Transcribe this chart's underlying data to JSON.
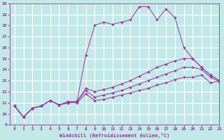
{
  "xlabel": "Windchill (Refroidissement éolien,°C)",
  "bg_color": "#c2e8e8",
  "line_color": "#993399",
  "grid_color": "#ffffff",
  "ylim": [
    9,
    20
  ],
  "xlim": [
    -0.5,
    23
  ],
  "yticks": [
    9,
    10,
    11,
    12,
    13,
    14,
    15,
    16,
    17,
    18,
    19,
    20
  ],
  "xticks": [
    0,
    1,
    2,
    3,
    4,
    5,
    6,
    7,
    8,
    9,
    10,
    11,
    12,
    13,
    14,
    15,
    16,
    17,
    18,
    19,
    20,
    21,
    22,
    23
  ],
  "lines": [
    {
      "x": [
        0,
        1,
        2,
        3,
        4,
        5,
        6,
        7,
        8,
        9,
        10,
        11,
        12,
        13,
        14,
        15,
        16,
        17,
        18,
        19,
        20,
        21,
        22,
        23
      ],
      "y": [
        10.7,
        9.7,
        10.5,
        10.7,
        11.2,
        10.8,
        11.1,
        11.1,
        15.3,
        18.0,
        18.3,
        18.1,
        18.3,
        18.5,
        19.7,
        19.7,
        18.5,
        19.5,
        18.7,
        16.0,
        15.0,
        14.2,
        13.5,
        13.0
      ]
    },
    {
      "x": [
        0,
        1,
        2,
        3,
        4,
        5,
        6,
        7,
        8,
        9,
        10,
        11,
        12,
        13,
        14,
        15,
        16,
        17,
        18,
        19,
        20,
        21,
        22,
        23
      ],
      "y": [
        10.7,
        9.7,
        10.5,
        10.7,
        11.2,
        10.8,
        11.0,
        11.1,
        12.3,
        12.0,
        12.2,
        12.4,
        12.7,
        13.0,
        13.4,
        13.8,
        14.2,
        14.5,
        14.8,
        15.0,
        15.0,
        14.2,
        13.5,
        13.0
      ]
    },
    {
      "x": [
        0,
        1,
        2,
        3,
        4,
        5,
        6,
        7,
        8,
        9,
        10,
        11,
        12,
        13,
        14,
        15,
        16,
        17,
        18,
        19,
        20,
        21,
        22,
        23
      ],
      "y": [
        10.7,
        9.7,
        10.5,
        10.7,
        11.2,
        10.8,
        11.0,
        11.1,
        12.1,
        11.5,
        11.7,
        11.9,
        12.1,
        12.4,
        12.7,
        13.0,
        13.3,
        13.6,
        13.9,
        14.2,
        14.2,
        14.0,
        13.3,
        12.9
      ]
    },
    {
      "x": [
        0,
        1,
        2,
        3,
        4,
        5,
        6,
        7,
        8,
        9,
        10,
        11,
        12,
        13,
        14,
        15,
        16,
        17,
        18,
        19,
        20,
        21,
        22,
        23
      ],
      "y": [
        10.7,
        9.7,
        10.5,
        10.7,
        11.2,
        10.8,
        11.0,
        11.0,
        11.8,
        11.2,
        11.3,
        11.5,
        11.7,
        11.9,
        12.1,
        12.3,
        12.6,
        12.8,
        13.1,
        13.3,
        13.3,
        13.5,
        12.8,
        13.0
      ]
    }
  ]
}
